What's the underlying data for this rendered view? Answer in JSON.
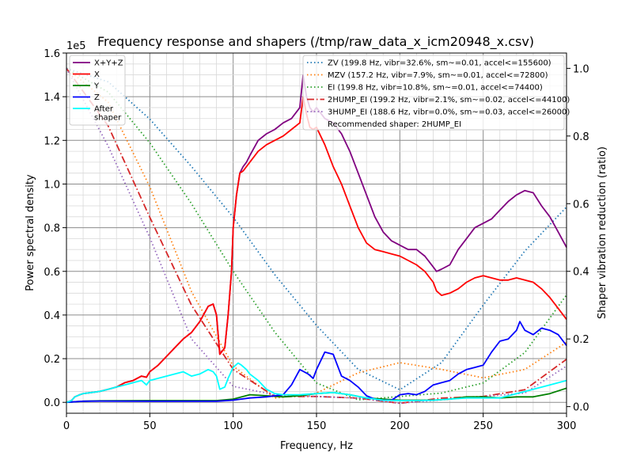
{
  "chart_data": {
    "type": "line",
    "title": "Frequency response and shapers (/tmp/raw_data_x_icm20948_x.csv)",
    "xlabel": "Frequency, Hz",
    "ylabel": "Power spectral density",
    "y2label": "Shaper vibration reduction (ratio)",
    "xlim": [
      0,
      300
    ],
    "ylim": [
      -5000,
      160000
    ],
    "y2lim": [
      -0.0196,
      1.0453
    ],
    "y_offset_text": "1e5",
    "xticks": [
      0,
      50,
      100,
      150,
      200,
      250,
      300
    ],
    "yticks": [
      0,
      20000,
      40000,
      60000,
      80000,
      100000,
      120000,
      140000,
      160000
    ],
    "ytick_labels": [
      "0.0",
      "0.2",
      "0.4",
      "0.6",
      "0.8",
      "1.0",
      "1.2",
      "1.4",
      "1.6"
    ],
    "y2ticks": [
      0.0,
      0.2,
      0.4,
      0.6,
      0.8,
      1.0
    ],
    "y2tick_labels": [
      "0.0",
      "0.2",
      "0.4",
      "0.6",
      "0.8",
      "1.0"
    ],
    "grid": true,
    "legend_left_placement": "top-left",
    "legend_right_placement": "top-right",
    "psd_series": [
      {
        "name": "X+Y+Z",
        "color": "#800080",
        "style": "solid",
        "x": [
          0,
          3,
          5,
          8,
          10,
          15,
          20,
          25,
          30,
          35,
          40,
          45,
          48,
          50,
          55,
          60,
          65,
          70,
          75,
          80,
          85,
          88,
          90,
          92,
          95,
          97,
          99,
          100,
          102,
          104,
          106,
          108,
          110,
          115,
          120,
          125,
          130,
          135,
          140,
          142,
          144,
          146,
          148,
          150,
          155,
          160,
          165,
          170,
          175,
          180,
          185,
          190,
          195,
          200,
          205,
          210,
          215,
          220,
          222,
          225,
          230,
          235,
          240,
          245,
          250,
          255,
          260,
          265,
          270,
          275,
          280,
          285,
          290,
          295,
          300
        ],
        "y": [
          0,
          800,
          2500,
          3500,
          4000,
          4500,
          5000,
          6000,
          7000,
          9000,
          10000,
          12000,
          11500,
          14000,
          17000,
          21000,
          25000,
          29000,
          32000,
          37000,
          44000,
          45000,
          40000,
          22000,
          25000,
          40000,
          60000,
          80000,
          95000,
          105000,
          108000,
          110000,
          113000,
          120000,
          123000,
          125000,
          128000,
          130000,
          135000,
          150000,
          140000,
          135000,
          133000,
          135000,
          130000,
          128000,
          123000,
          115000,
          105000,
          95000,
          85000,
          78000,
          74000,
          72000,
          70000,
          70000,
          67000,
          62000,
          60000,
          61000,
          63000,
          70000,
          75000,
          80000,
          82000,
          84000,
          88000,
          92000,
          95000,
          97000,
          96000,
          90000,
          85000,
          78000,
          71000
        ]
      },
      {
        "name": "X",
        "color": "#ff0000",
        "style": "solid",
        "x": [
          0,
          3,
          5,
          8,
          10,
          15,
          20,
          25,
          30,
          35,
          40,
          45,
          48,
          50,
          55,
          60,
          65,
          70,
          75,
          80,
          85,
          88,
          90,
          92,
          95,
          97,
          99,
          100,
          102,
          104,
          106,
          108,
          110,
          115,
          120,
          125,
          130,
          135,
          140,
          142,
          144,
          146,
          148,
          150,
          155,
          160,
          165,
          170,
          175,
          180,
          185,
          190,
          195,
          200,
          205,
          210,
          215,
          220,
          222,
          225,
          230,
          235,
          240,
          245,
          250,
          255,
          260,
          265,
          270,
          275,
          280,
          285,
          290,
          295,
          300
        ],
        "y": [
          0,
          800,
          2500,
          3500,
          4000,
          4500,
          5000,
          6000,
          7000,
          9000,
          10000,
          12000,
          11500,
          14000,
          17000,
          21000,
          25000,
          29000,
          32000,
          37000,
          44000,
          45000,
          40000,
          22000,
          25000,
          40000,
          60000,
          80000,
          95000,
          105000,
          106000,
          108000,
          110000,
          115000,
          118000,
          120000,
          122000,
          125000,
          128000,
          140000,
          132000,
          126000,
          125000,
          126000,
          118000,
          108000,
          100000,
          90000,
          80000,
          73000,
          70000,
          69000,
          68000,
          67000,
          65000,
          63000,
          60000,
          55000,
          51000,
          49000,
          50000,
          52000,
          55000,
          57000,
          58000,
          57000,
          56000,
          56000,
          57000,
          56000,
          55000,
          52000,
          48000,
          43000,
          38000
        ]
      },
      {
        "name": "Y",
        "color": "#008000",
        "style": "solid",
        "x": [
          0,
          10,
          20,
          50,
          90,
          100,
          110,
          120,
          130,
          140,
          150,
          160,
          170,
          180,
          190,
          200,
          210,
          220,
          230,
          240,
          250,
          260,
          270,
          280,
          290,
          300
        ],
        "y": [
          0,
          500,
          700,
          800,
          800,
          1500,
          3500,
          3000,
          2500,
          3000,
          4000,
          4500,
          3500,
          2000,
          1500,
          1000,
          1000,
          1000,
          1500,
          2500,
          2500,
          2000,
          2500,
          2500,
          4000,
          6500
        ]
      },
      {
        "name": "Z",
        "color": "#0000ff",
        "style": "solid",
        "x": [
          0,
          10,
          20,
          50,
          90,
          100,
          110,
          120,
          130,
          135,
          140,
          145,
          148,
          150,
          155,
          160,
          165,
          170,
          175,
          180,
          185,
          190,
          195,
          200,
          205,
          210,
          215,
          220,
          225,
          230,
          235,
          240,
          245,
          250,
          255,
          260,
          265,
          270,
          272,
          275,
          280,
          285,
          290,
          295,
          300
        ],
        "y": [
          0,
          500,
          600,
          500,
          500,
          1000,
          2000,
          2500,
          3500,
          8000,
          15000,
          13000,
          11000,
          15000,
          23000,
          22000,
          12000,
          10000,
          7000,
          3000,
          1500,
          1000,
          1000,
          3500,
          4000,
          3500,
          5000,
          8000,
          9000,
          10000,
          13000,
          15000,
          16000,
          17000,
          23000,
          28000,
          29000,
          33000,
          37000,
          33000,
          31000,
          34000,
          33000,
          31000,
          26000
        ]
      },
      {
        "name": "After\nshaper",
        "color": "#00ffff",
        "style": "solid",
        "x": [
          0,
          3,
          5,
          8,
          10,
          15,
          20,
          25,
          30,
          35,
          40,
          45,
          48,
          50,
          55,
          60,
          65,
          70,
          75,
          80,
          85,
          88,
          90,
          92,
          95,
          97,
          100,
          103,
          105,
          108,
          110,
          115,
          120,
          125,
          130,
          135,
          140,
          150,
          160,
          170,
          180,
          190,
          200,
          210,
          220,
          230,
          240,
          250,
          260,
          270,
          280,
          290,
          300
        ],
        "y": [
          0,
          800,
          2500,
          3500,
          4000,
          4500,
          5000,
          6000,
          7000,
          8000,
          9000,
          10000,
          8000,
          10000,
          11000,
          12000,
          13000,
          14000,
          12000,
          13000,
          15000,
          14000,
          12000,
          6000,
          7000,
          11000,
          16000,
          18000,
          17000,
          15000,
          13000,
          10000,
          6000,
          4000,
          3500,
          3500,
          3500,
          4000,
          4500,
          3500,
          2000,
          1000,
          800,
          800,
          1000,
          1500,
          2000,
          2000,
          2000,
          4000,
          6000,
          8000,
          10000
        ]
      }
    ],
    "shaper_series": [
      {
        "name": "ZV (199.8 Hz, vibr=32.6%, sm~=0.01, accel<=155600)",
        "color": "#1f77b4",
        "style": "dotted",
        "x": [
          0,
          25,
          50,
          75,
          100,
          125,
          150,
          175,
          200,
          225,
          250,
          275,
          300
        ],
        "y": [
          1.0,
          0.96,
          0.85,
          0.71,
          0.56,
          0.39,
          0.24,
          0.11,
          0.05,
          0.13,
          0.3,
          0.46,
          0.59
        ]
      },
      {
        "name": "MZV (157.2 Hz, vibr=7.9%, sm~=0.01, accel<=72800)",
        "color": "#ff7f0e",
        "style": "dotted",
        "x": [
          0,
          25,
          50,
          75,
          100,
          125,
          150,
          175,
          200,
          225,
          250,
          275,
          300
        ],
        "y": [
          1.0,
          0.9,
          0.65,
          0.34,
          0.12,
          0.025,
          0.04,
          0.1,
          0.13,
          0.11,
          0.085,
          0.11,
          0.19
        ]
      },
      {
        "name": "EI (199.8 Hz, vibr=10.8%, sm~=0.01, accel<=74400)",
        "color": "#2ca02c",
        "style": "dotted",
        "x": [
          0,
          25,
          50,
          75,
          100,
          125,
          150,
          175,
          200,
          225,
          250,
          275,
          300
        ],
        "y": [
          1.0,
          0.93,
          0.78,
          0.6,
          0.4,
          0.22,
          0.07,
          0.02,
          0.03,
          0.04,
          0.07,
          0.16,
          0.33
        ]
      },
      {
        "name": "2HUMP_EI (199.2 Hz, vibr=2.1%, sm~=0.02, accel<=44100)",
        "color": "#d62728",
        "style": "dashdot",
        "x": [
          0,
          25,
          50,
          75,
          100,
          125,
          150,
          175,
          200,
          225,
          250,
          275,
          300
        ],
        "y": [
          1.0,
          0.83,
          0.56,
          0.3,
          0.11,
          0.03,
          0.03,
          0.025,
          0.01,
          0.025,
          0.03,
          0.05,
          0.14
        ]
      },
      {
        "name": "3HUMP_EI (188.6 Hz, vibr=0.0%, sm~=0.03, accel<=26000)",
        "color": "#9467bd",
        "style": "dotted",
        "x": [
          0,
          25,
          50,
          75,
          100,
          125,
          150,
          175,
          200,
          225,
          250,
          275,
          300
        ],
        "y": [
          1.0,
          0.77,
          0.5,
          0.2,
          0.06,
          0.035,
          0.03,
          0.025,
          0.01,
          0.02,
          0.03,
          0.04,
          0.12
        ]
      }
    ],
    "recommended_text": "Recommended shaper: 2HUMP_EI"
  }
}
